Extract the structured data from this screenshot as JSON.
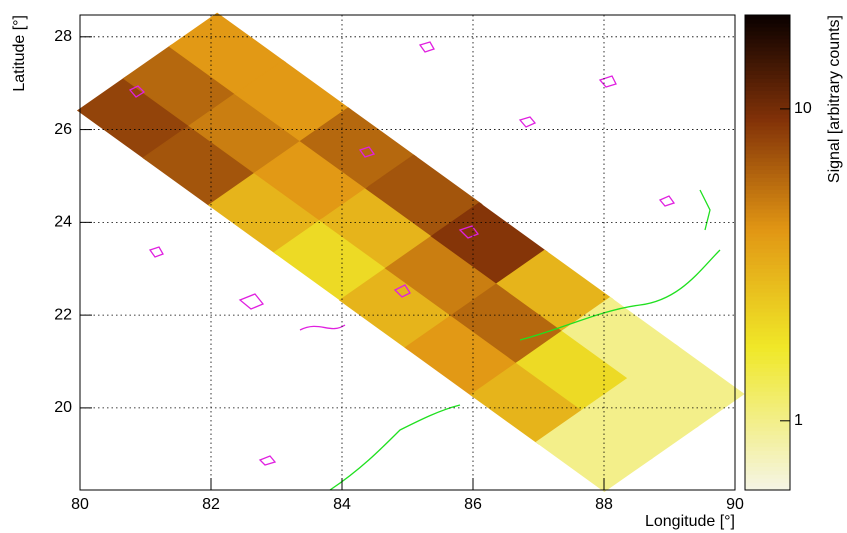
{
  "chart_data": {
    "type": "heatmap",
    "x_label": "Longitude [°]",
    "y_label": "Latitude [°]",
    "z_label": "Signal [arbitrary counts]",
    "xlim": [
      80,
      90
    ],
    "xticks": [
      80,
      82,
      84,
      86,
      88,
      90
    ],
    "ylim": [
      18.23,
      28.47
    ],
    "yticks": [
      20,
      22,
      24,
      26,
      28
    ],
    "zlim": [
      0.6,
      20
    ],
    "zticks": [
      1,
      10
    ],
    "zlog": true,
    "grid": true,
    "x": [
      80.85,
      81.55,
      82.25,
      81.85,
      82.55,
      83.25,
      82.85,
      83.55,
      84.25,
      83.85,
      84.55,
      85.25,
      84.85,
      85.55,
      86.25,
      85.85,
      86.55,
      87.25,
      86.85,
      87.55,
      88.25,
      87.85,
      88.55,
      89.25
    ],
    "y": [
      26.24,
      26.93,
      27.62,
      25.22,
      25.91,
      26.6,
      24.2,
      24.89,
      25.58,
      23.18,
      23.87,
      24.56,
      22.15,
      22.84,
      23.53,
      21.13,
      21.82,
      22.51,
      20.11,
      20.8,
      21.49,
      19.09,
      19.78,
      20.47
    ],
    "values": [
      8,
      6,
      4,
      7,
      5,
      4,
      3,
      4,
      6,
      2,
      3,
      7,
      3,
      5,
      9,
      4,
      6,
      3,
      3,
      2,
      1,
      1,
      1,
      1
    ]
  }
}
